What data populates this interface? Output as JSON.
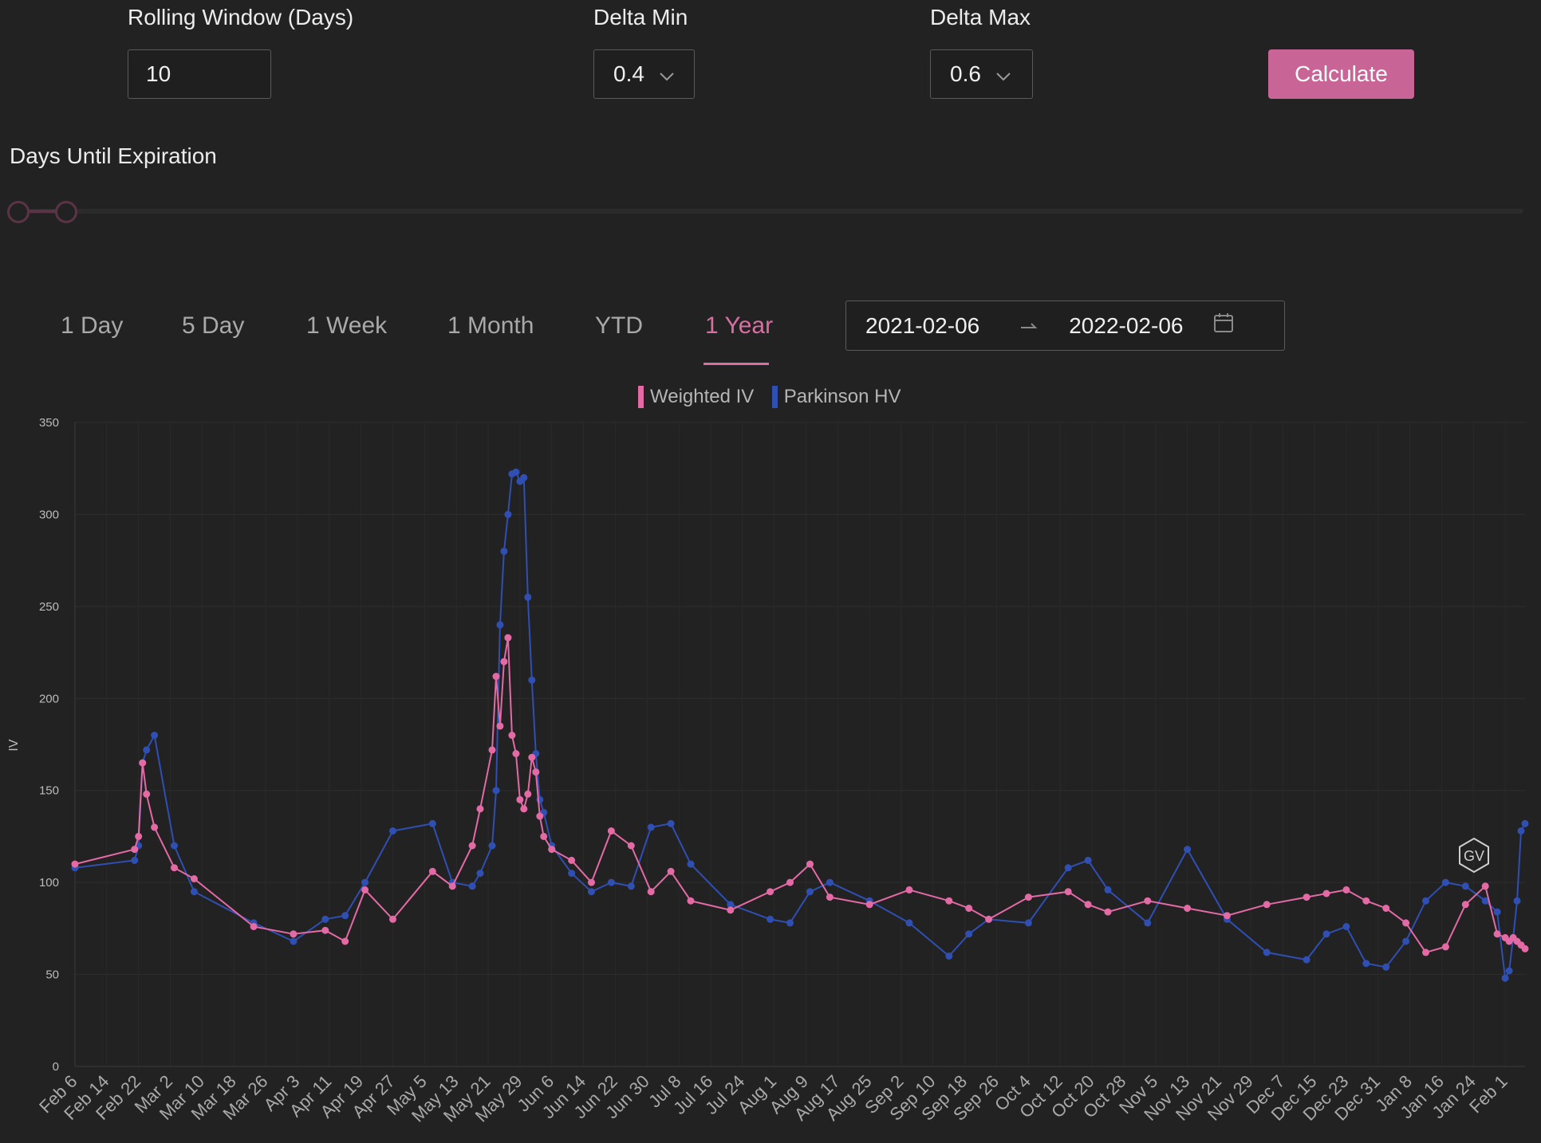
{
  "controls": {
    "rolling_window_label": "Rolling Window (Days)",
    "rolling_window_value": "10",
    "delta_min_label": "Delta Min",
    "delta_min_value": "0.4",
    "delta_max_label": "Delta Max",
    "delta_max_value": "0.6",
    "calculate_label": "Calculate",
    "days_until_expiration_label": "Days Until Expiration"
  },
  "slider": {
    "low_fraction": 0.0,
    "high_fraction": 0.032
  },
  "tabs": [
    {
      "label": "1 Day"
    },
    {
      "label": "5 Day"
    },
    {
      "label": "1 Week"
    },
    {
      "label": "1 Month"
    },
    {
      "label": "YTD"
    },
    {
      "label": "1 Year",
      "active": true
    }
  ],
  "date_range": {
    "start": "2021-02-06",
    "end": "2022-02-06"
  },
  "colors": {
    "weighted_iv": "#e46aa6",
    "parkinson_hv": "#2f4fb3",
    "accent": "#c86596"
  },
  "icons": {
    "calendar": "calendar-icon",
    "chevron": "chevron-down-icon",
    "logo": "gv-logo-icon"
  },
  "chart_data": {
    "type": "line",
    "ylabel": "IV",
    "ylim": [
      0,
      350
    ],
    "yticks": [
      0,
      50,
      100,
      150,
      200,
      250,
      300,
      350
    ],
    "grid": true,
    "legend_position": "top-center",
    "xticks": [
      "Feb 6",
      "Feb 14",
      "Feb 22",
      "Mar 2",
      "Mar 10",
      "Mar 18",
      "Mar 26",
      "Apr 3",
      "Apr 11",
      "Apr 19",
      "Apr 27",
      "May 5",
      "May 13",
      "May 21",
      "May 29",
      "Jun 6",
      "Jun 14",
      "Jun 22",
      "Jun 30",
      "Jul 8",
      "Jul 16",
      "Jul 24",
      "Aug 1",
      "Aug 9",
      "Aug 17",
      "Aug 25",
      "Sep 2",
      "Sep 10",
      "Sep 18",
      "Sep 26",
      "Oct 4",
      "Oct 12",
      "Oct 20",
      "Oct 28",
      "Nov 5",
      "Nov 13",
      "Nov 21",
      "Nov 29",
      "Dec 7",
      "Dec 15",
      "Dec 23",
      "Dec 31",
      "Jan 8",
      "Jan 16",
      "Jan 24",
      "Feb 1"
    ],
    "x_days": [
      0,
      15,
      16,
      17,
      18,
      20,
      25,
      30,
      45,
      55,
      63,
      68,
      73,
      80,
      90,
      95,
      100,
      102,
      105,
      106,
      107,
      108,
      109,
      110,
      111,
      112,
      113,
      114,
      115,
      116,
      117,
      118,
      120,
      125,
      130,
      135,
      140,
      145,
      150,
      155,
      165,
      175,
      180,
      185,
      190,
      200,
      210,
      220,
      225,
      230,
      240,
      250,
      255,
      260,
      270,
      280,
      290,
      300,
      310,
      315,
      320,
      325,
      330,
      335,
      340,
      345,
      350,
      355,
      358,
      360,
      361,
      362,
      363,
      364,
      365
    ],
    "series": [
      {
        "name": "Weighted IV",
        "values": [
          110,
          118,
          125,
          165,
          148,
          130,
          108,
          102,
          76,
          72,
          74,
          68,
          96,
          80,
          106,
          98,
          120,
          140,
          172,
          212,
          185,
          220,
          233,
          180,
          170,
          145,
          140,
          148,
          168,
          160,
          136,
          125,
          118,
          112,
          100,
          128,
          120,
          95,
          106,
          90,
          85,
          95,
          100,
          110,
          92,
          88,
          96,
          90,
          86,
          80,
          92,
          95,
          88,
          84,
          90,
          86,
          82,
          88,
          92,
          94,
          96,
          90,
          86,
          78,
          62,
          65,
          88,
          98,
          72,
          70,
          68,
          70,
          68,
          66,
          64
        ]
      },
      {
        "name": "Parkinson HV",
        "values": [
          108,
          112,
          120,
          165,
          172,
          180,
          120,
          95,
          78,
          68,
          80,
          82,
          100,
          128,
          132,
          100,
          98,
          105,
          120,
          150,
          240,
          280,
          300,
          322,
          323,
          318,
          320,
          255,
          210,
          170,
          145,
          138,
          120,
          105,
          95,
          100,
          98,
          130,
          132,
          110,
          88,
          80,
          78,
          95,
          100,
          90,
          78,
          60,
          72,
          80,
          78,
          108,
          112,
          96,
          78,
          118,
          80,
          62,
          58,
          72,
          76,
          56,
          54,
          68,
          90,
          100,
          98,
          90,
          84,
          48,
          52,
          70,
          90,
          128,
          132
        ]
      }
    ]
  }
}
